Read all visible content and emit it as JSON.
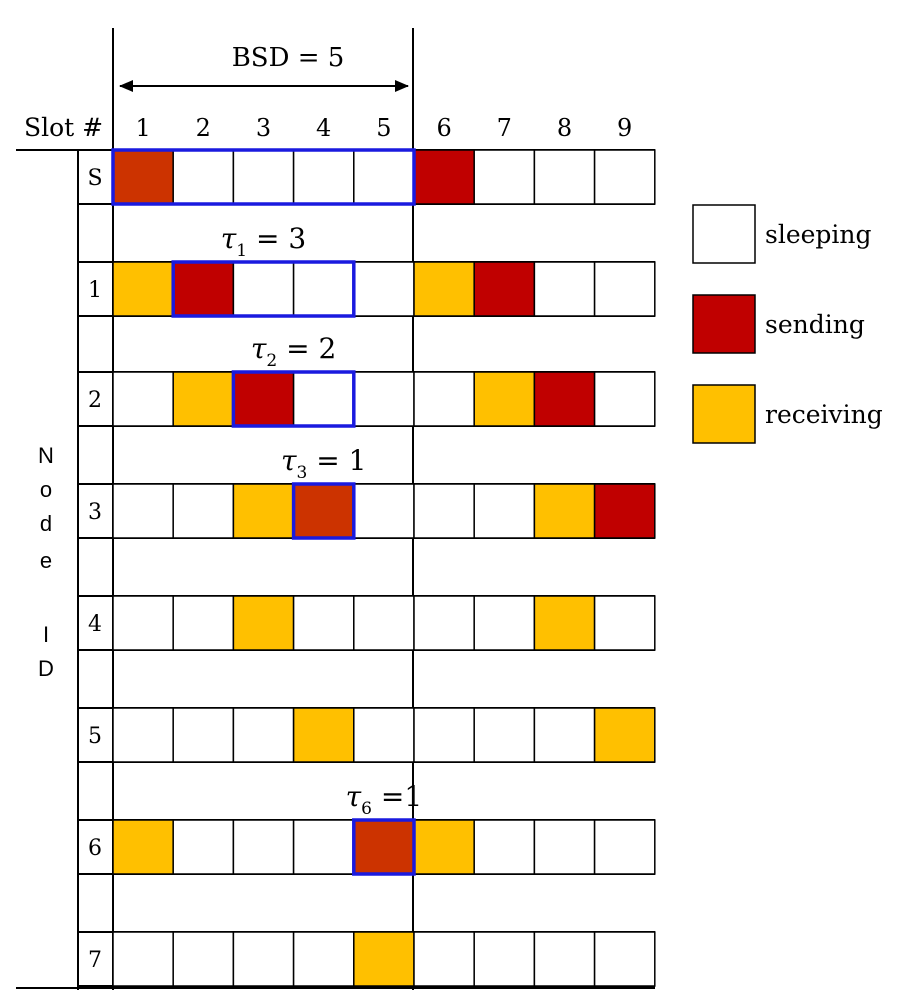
{
  "colors": {
    "sleeping": "#ffffff",
    "sending": "#c00000",
    "sending_start": "#cc3300",
    "receiving": "#ffc000",
    "highlight": "#1a1adf",
    "line": "#000000"
  },
  "header": {
    "bsd_label": "BSD = 5",
    "slot_header": "Slot #",
    "slots": [
      "1",
      "2",
      "3",
      "4",
      "5",
      "6",
      "7",
      "8",
      "9"
    ]
  },
  "node_id_label": [
    "N",
    "o",
    "d",
    "e",
    "",
    "I",
    "D"
  ],
  "rows": [
    {
      "id": "S",
      "states": [
        "sending_start",
        "sleeping",
        "sleeping",
        "sleeping",
        "sleeping",
        "sending",
        "sleeping",
        "sleeping",
        "sleeping"
      ]
    },
    {
      "id": "1",
      "states": [
        "receiving",
        "sending",
        "sleeping",
        "sleeping",
        "sleeping",
        "receiving",
        "sending",
        "sleeping",
        "sleeping"
      ]
    },
    {
      "id": "2",
      "states": [
        "sleeping",
        "receiving",
        "sending",
        "sleeping",
        "sleeping",
        "sleeping",
        "receiving",
        "sending",
        "sleeping"
      ]
    },
    {
      "id": "3",
      "states": [
        "sleeping",
        "sleeping",
        "receiving",
        "sending_start",
        "sleeping",
        "sleeping",
        "sleeping",
        "receiving",
        "sending"
      ]
    },
    {
      "id": "4",
      "states": [
        "sleeping",
        "sleeping",
        "receiving",
        "sleeping",
        "sleeping",
        "sleeping",
        "sleeping",
        "receiving",
        "sleeping"
      ]
    },
    {
      "id": "5",
      "states": [
        "sleeping",
        "sleeping",
        "sleeping",
        "receiving",
        "sleeping",
        "sleeping",
        "sleeping",
        "sleeping",
        "receiving"
      ]
    },
    {
      "id": "6",
      "states": [
        "receiving",
        "sleeping",
        "sleeping",
        "sleeping",
        "sending_start",
        "receiving",
        "sleeping",
        "sleeping",
        "sleeping"
      ]
    },
    {
      "id": "7",
      "states": [
        "sleeping",
        "sleeping",
        "sleeping",
        "sleeping",
        "receiving",
        "sleeping",
        "sleeping",
        "sleeping",
        "sleeping"
      ]
    }
  ],
  "tau_labels": [
    {
      "row": 1,
      "symbol": "τ",
      "sub": "1",
      "text": " = 3",
      "slot_start": 2,
      "slot_end": 4
    },
    {
      "row": 2,
      "symbol": "τ",
      "sub": "2",
      "text": " = 2",
      "slot_start": 3,
      "slot_end": 4
    },
    {
      "row": 3,
      "symbol": "τ",
      "sub": "3",
      "text": " = 1",
      "slot_start": 4,
      "slot_end": 4
    },
    {
      "row": 6,
      "symbol": "τ",
      "sub": "6",
      "text": " =1",
      "slot_start": 5,
      "slot_end": 5
    }
  ],
  "legend": [
    {
      "key": "sleeping",
      "label": "sleeping"
    },
    {
      "key": "sending",
      "label": "sending"
    },
    {
      "key": "receiving",
      "label": "receiving"
    }
  ]
}
